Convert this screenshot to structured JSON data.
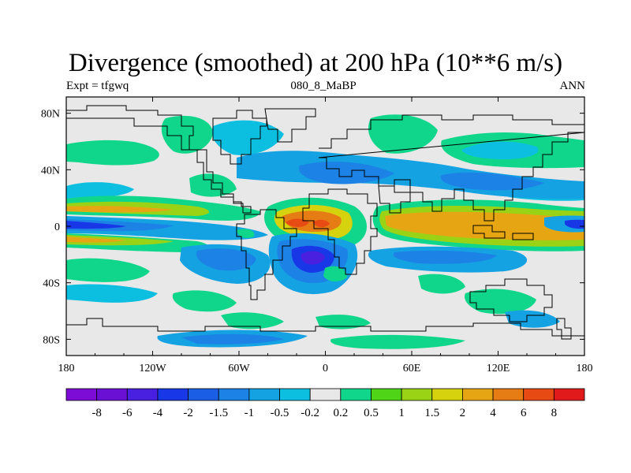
{
  "title": "Divergence (smoothed) at 200 hPa (10**6 m/s)",
  "left_label": "Expt = tfgwq",
  "center_label": "080_8_MaBP",
  "right_label": "ANN",
  "lon_ticks": [
    "180",
    "120W",
    "60W",
    "0",
    "60E",
    "120E",
    "180"
  ],
  "lat_ticks": [
    "80N",
    "40N",
    "0",
    "40S",
    "80S"
  ],
  "colorbar": {
    "labels": [
      "-8",
      "-6",
      "-4",
      "-2",
      "-1.5",
      "-1",
      "-0.5",
      "-0.2",
      "0.2",
      "0.5",
      "1",
      "1.5",
      "2",
      "4",
      "6",
      "8"
    ],
    "colors": [
      "#7d0dd6",
      "#6a10d4",
      "#4a20e0",
      "#1838e8",
      "#1a5ee6",
      "#1c82e6",
      "#14a2e2",
      "#0cbfe0",
      "#e8e8e8",
      "#10d68c",
      "#50d418",
      "#9ad216",
      "#d6d20e",
      "#e6a614",
      "#e67c14",
      "#e84a14",
      "#e01a1a"
    ]
  }
}
